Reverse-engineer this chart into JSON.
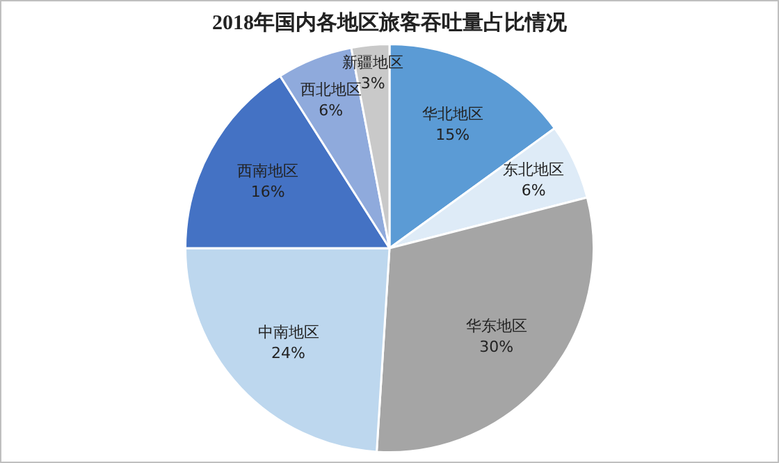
{
  "chart_data": {
    "type": "pie",
    "title": "2018年国内各地区旅客吞吐量占比情况",
    "categories": [
      "华北地区",
      "东北地区",
      "华东地区",
      "中南地区",
      "西南地区",
      "西北地区",
      "新疆地区"
    ],
    "values": [
      15,
      6,
      30,
      24,
      16,
      6,
      3
    ],
    "value_labels": [
      "15%",
      "6%",
      "30%",
      "24%",
      "16%",
      "6%",
      "3%"
    ],
    "colors": [
      "#5b9bd5",
      "#deebf7",
      "#a5a5a5",
      "#bdd7ee",
      "#4472c4",
      "#8faadc",
      "#c9c9c9"
    ],
    "legend": false
  }
}
